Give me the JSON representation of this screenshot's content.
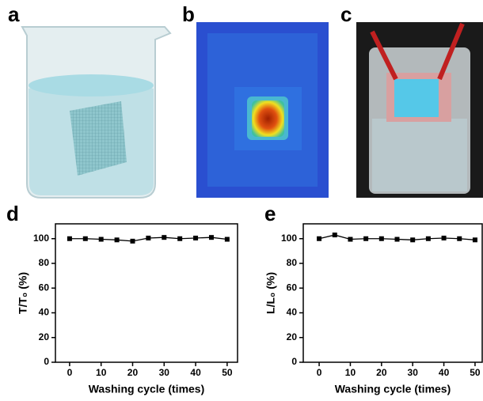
{
  "panels": [
    {
      "label": "a"
    },
    {
      "label": "b"
    },
    {
      "label": "c"
    }
  ],
  "chart_data": [
    {
      "type": "line",
      "panel_label": "d",
      "y_label": "T/T₀ (%)",
      "x_label": "Washing cycle (times)",
      "x": [
        0,
        5,
        10,
        15,
        20,
        25,
        30,
        35,
        40,
        45,
        50
      ],
      "values": [
        100,
        100,
        99.5,
        99,
        98,
        100.5,
        101,
        100,
        100.5,
        101,
        99.5
      ],
      "color": "#000000",
      "xlim": [
        -4.5,
        53.3
      ],
      "xticks": [
        0,
        10,
        20,
        30,
        40,
        50
      ],
      "ylim": [
        0,
        112
      ],
      "yticks": [
        0,
        20,
        40,
        60,
        80,
        100
      ]
    },
    {
      "type": "line",
      "panel_label": "e",
      "y_label": "L/L₀ (%)",
      "x_label": "Washing cycle (times)",
      "x": [
        0,
        5,
        10,
        15,
        20,
        25,
        30,
        35,
        40,
        45,
        50
      ],
      "values": [
        100,
        103,
        99.5,
        100,
        100,
        99.5,
        99,
        100,
        100.5,
        100,
        99
      ],
      "color": "#000000",
      "xlim": [
        -5.1,
        52.3
      ],
      "xticks": [
        0,
        10,
        20,
        30,
        40,
        50
      ],
      "ylim": [
        0,
        112
      ],
      "yticks": [
        0,
        20,
        40,
        60,
        80,
        100
      ]
    }
  ]
}
